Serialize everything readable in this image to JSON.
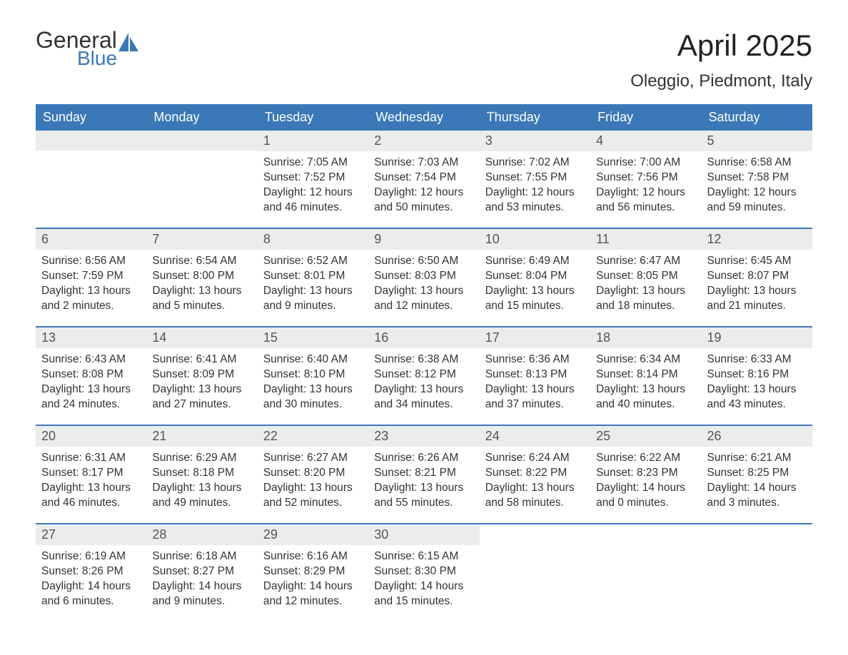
{
  "logo": {
    "word1": "General",
    "word2": "Blue"
  },
  "title": "April 2025",
  "subtitle": "Oleggio, Piedmont, Italy",
  "colors": {
    "header_bg": "#3b78b8",
    "header_text": "#ffffff",
    "daynum_bg": "#ececec",
    "daynum_text": "#555555",
    "body_text": "#333333",
    "week_border": "#3b78b8",
    "page_bg": "#ffffff",
    "logo_accent": "#3b78b8"
  },
  "typography": {
    "title_fontsize": 42,
    "subtitle_fontsize": 24,
    "header_fontsize": 18,
    "daynum_fontsize": 18,
    "body_fontsize": 15.5,
    "font_family": "Arial"
  },
  "day_names": [
    "Sunday",
    "Monday",
    "Tuesday",
    "Wednesday",
    "Thursday",
    "Friday",
    "Saturday"
  ],
  "weeks": [
    [
      null,
      null,
      {
        "n": "1",
        "sunrise": "7:05 AM",
        "sunset": "7:52 PM",
        "dl1": "Daylight: 12 hours",
        "dl2": "and 46 minutes."
      },
      {
        "n": "2",
        "sunrise": "7:03 AM",
        "sunset": "7:54 PM",
        "dl1": "Daylight: 12 hours",
        "dl2": "and 50 minutes."
      },
      {
        "n": "3",
        "sunrise": "7:02 AM",
        "sunset": "7:55 PM",
        "dl1": "Daylight: 12 hours",
        "dl2": "and 53 minutes."
      },
      {
        "n": "4",
        "sunrise": "7:00 AM",
        "sunset": "7:56 PM",
        "dl1": "Daylight: 12 hours",
        "dl2": "and 56 minutes."
      },
      {
        "n": "5",
        "sunrise": "6:58 AM",
        "sunset": "7:58 PM",
        "dl1": "Daylight: 12 hours",
        "dl2": "and 59 minutes."
      }
    ],
    [
      {
        "n": "6",
        "sunrise": "6:56 AM",
        "sunset": "7:59 PM",
        "dl1": "Daylight: 13 hours",
        "dl2": "and 2 minutes."
      },
      {
        "n": "7",
        "sunrise": "6:54 AM",
        "sunset": "8:00 PM",
        "dl1": "Daylight: 13 hours",
        "dl2": "and 5 minutes."
      },
      {
        "n": "8",
        "sunrise": "6:52 AM",
        "sunset": "8:01 PM",
        "dl1": "Daylight: 13 hours",
        "dl2": "and 9 minutes."
      },
      {
        "n": "9",
        "sunrise": "6:50 AM",
        "sunset": "8:03 PM",
        "dl1": "Daylight: 13 hours",
        "dl2": "and 12 minutes."
      },
      {
        "n": "10",
        "sunrise": "6:49 AM",
        "sunset": "8:04 PM",
        "dl1": "Daylight: 13 hours",
        "dl2": "and 15 minutes."
      },
      {
        "n": "11",
        "sunrise": "6:47 AM",
        "sunset": "8:05 PM",
        "dl1": "Daylight: 13 hours",
        "dl2": "and 18 minutes."
      },
      {
        "n": "12",
        "sunrise": "6:45 AM",
        "sunset": "8:07 PM",
        "dl1": "Daylight: 13 hours",
        "dl2": "and 21 minutes."
      }
    ],
    [
      {
        "n": "13",
        "sunrise": "6:43 AM",
        "sunset": "8:08 PM",
        "dl1": "Daylight: 13 hours",
        "dl2": "and 24 minutes."
      },
      {
        "n": "14",
        "sunrise": "6:41 AM",
        "sunset": "8:09 PM",
        "dl1": "Daylight: 13 hours",
        "dl2": "and 27 minutes."
      },
      {
        "n": "15",
        "sunrise": "6:40 AM",
        "sunset": "8:10 PM",
        "dl1": "Daylight: 13 hours",
        "dl2": "and 30 minutes."
      },
      {
        "n": "16",
        "sunrise": "6:38 AM",
        "sunset": "8:12 PM",
        "dl1": "Daylight: 13 hours",
        "dl2": "and 34 minutes."
      },
      {
        "n": "17",
        "sunrise": "6:36 AM",
        "sunset": "8:13 PM",
        "dl1": "Daylight: 13 hours",
        "dl2": "and 37 minutes."
      },
      {
        "n": "18",
        "sunrise": "6:34 AM",
        "sunset": "8:14 PM",
        "dl1": "Daylight: 13 hours",
        "dl2": "and 40 minutes."
      },
      {
        "n": "19",
        "sunrise": "6:33 AM",
        "sunset": "8:16 PM",
        "dl1": "Daylight: 13 hours",
        "dl2": "and 43 minutes."
      }
    ],
    [
      {
        "n": "20",
        "sunrise": "6:31 AM",
        "sunset": "8:17 PM",
        "dl1": "Daylight: 13 hours",
        "dl2": "and 46 minutes."
      },
      {
        "n": "21",
        "sunrise": "6:29 AM",
        "sunset": "8:18 PM",
        "dl1": "Daylight: 13 hours",
        "dl2": "and 49 minutes."
      },
      {
        "n": "22",
        "sunrise": "6:27 AM",
        "sunset": "8:20 PM",
        "dl1": "Daylight: 13 hours",
        "dl2": "and 52 minutes."
      },
      {
        "n": "23",
        "sunrise": "6:26 AM",
        "sunset": "8:21 PM",
        "dl1": "Daylight: 13 hours",
        "dl2": "and 55 minutes."
      },
      {
        "n": "24",
        "sunrise": "6:24 AM",
        "sunset": "8:22 PM",
        "dl1": "Daylight: 13 hours",
        "dl2": "and 58 minutes."
      },
      {
        "n": "25",
        "sunrise": "6:22 AM",
        "sunset": "8:23 PM",
        "dl1": "Daylight: 14 hours",
        "dl2": "and 0 minutes."
      },
      {
        "n": "26",
        "sunrise": "6:21 AM",
        "sunset": "8:25 PM",
        "dl1": "Daylight: 14 hours",
        "dl2": "and 3 minutes."
      }
    ],
    [
      {
        "n": "27",
        "sunrise": "6:19 AM",
        "sunset": "8:26 PM",
        "dl1": "Daylight: 14 hours",
        "dl2": "and 6 minutes."
      },
      {
        "n": "28",
        "sunrise": "6:18 AM",
        "sunset": "8:27 PM",
        "dl1": "Daylight: 14 hours",
        "dl2": "and 9 minutes."
      },
      {
        "n": "29",
        "sunrise": "6:16 AM",
        "sunset": "8:29 PM",
        "dl1": "Daylight: 14 hours",
        "dl2": "and 12 minutes."
      },
      {
        "n": "30",
        "sunrise": "6:15 AM",
        "sunset": "8:30 PM",
        "dl1": "Daylight: 14 hours",
        "dl2": "and 15 minutes."
      },
      null,
      null,
      null
    ]
  ]
}
